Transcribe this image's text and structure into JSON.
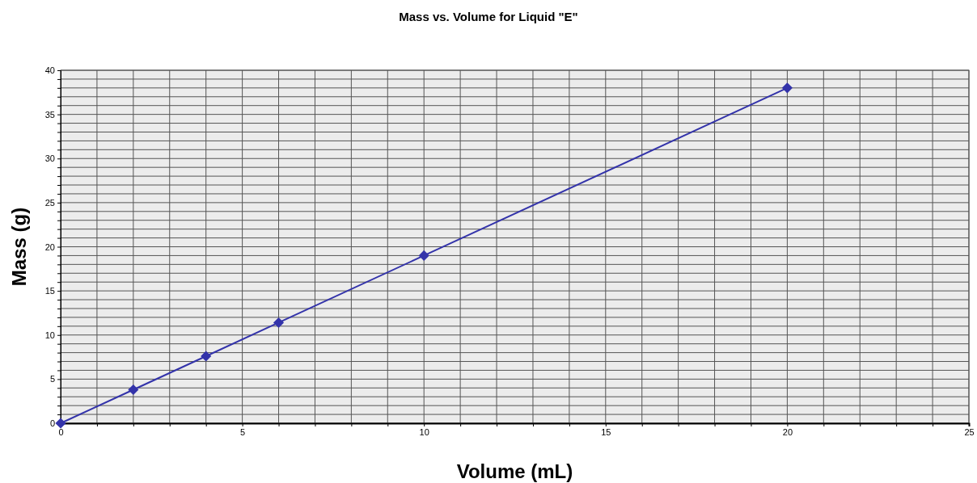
{
  "chart_data": {
    "type": "line",
    "title": "Mass vs. Volume for Liquid \"E\"",
    "xlabel": "Volume (mL)",
    "ylabel": "Mass (g)",
    "x": [
      0,
      2,
      4,
      6,
      10,
      20
    ],
    "series": [
      {
        "color": "#3333aa",
        "values": [
          0,
          3.8,
          7.6,
          11.4,
          19,
          38
        ]
      }
    ],
    "xlim": [
      0,
      25
    ],
    "xticks": [
      0,
      {
        "value": 1,
        "label": null
      },
      {
        "value": 2,
        "label": null
      },
      {
        "value": 3,
        "label": null
      },
      {
        "value": 4,
        "label": null
      },
      5,
      {
        "value": 6,
        "label": null
      },
      {
        "value": 7,
        "label": null
      },
      {
        "value": 8,
        "label": null
      },
      {
        "value": 9,
        "label": null
      },
      10,
      {
        "value": 11,
        "label": null
      },
      {
        "value": 12,
        "label": null
      },
      {
        "value": 13,
        "label": null
      },
      {
        "value": 14,
        "label": null
      },
      15,
      {
        "value": 16,
        "label": null
      },
      {
        "value": 17,
        "label": null
      },
      {
        "value": 18,
        "label": null
      },
      {
        "value": 19,
        "label": null
      },
      20,
      {
        "value": 21,
        "label": null
      },
      {
        "value": 22,
        "label": null
      },
      {
        "value": 23,
        "label": null
      },
      {
        "value": 24,
        "label": null
      },
      25
    ],
    "ylim": [
      0,
      40
    ],
    "yticks": [
      0,
      {
        "value": 1,
        "label": null
      },
      {
        "value": 2,
        "label": null
      },
      {
        "value": 3,
        "label": null
      },
      {
        "value": 4,
        "label": null
      },
      5,
      {
        "value": 6,
        "label": null
      },
      {
        "value": 7,
        "label": null
      },
      {
        "value": 8,
        "label": null
      },
      {
        "value": 9,
        "label": null
      },
      10,
      {
        "value": 11,
        "label": null
      },
      {
        "value": 12,
        "label": null
      },
      {
        "value": 13,
        "label": null
      },
      {
        "value": 14,
        "label": null
      },
      15,
      {
        "value": 16,
        "label": null
      },
      {
        "value": 17,
        "label": null
      },
      {
        "value": 18,
        "label": null
      },
      {
        "value": 19,
        "label": null
      },
      20,
      {
        "value": 21,
        "label": null
      },
      {
        "value": 22,
        "label": null
      },
      {
        "value": 23,
        "label": null
      },
      {
        "value": 24,
        "label": null
      },
      25,
      {
        "value": 26,
        "label": null
      },
      {
        "value": 27,
        "label": null
      },
      {
        "value": 28,
        "label": null
      },
      {
        "value": 29,
        "label": null
      },
      30,
      {
        "value": 31,
        "label": null
      },
      {
        "value": 32,
        "label": null
      },
      {
        "value": 33,
        "label": null
      },
      {
        "value": 34,
        "label": null
      },
      35,
      {
        "value": 36,
        "label": null
      },
      {
        "value": 37,
        "label": null
      },
      {
        "value": 38,
        "label": null
      },
      {
        "value": 39,
        "label": null
      },
      40
    ],
    "grid": true,
    "marker": "diamond",
    "line_style": "solid"
  }
}
